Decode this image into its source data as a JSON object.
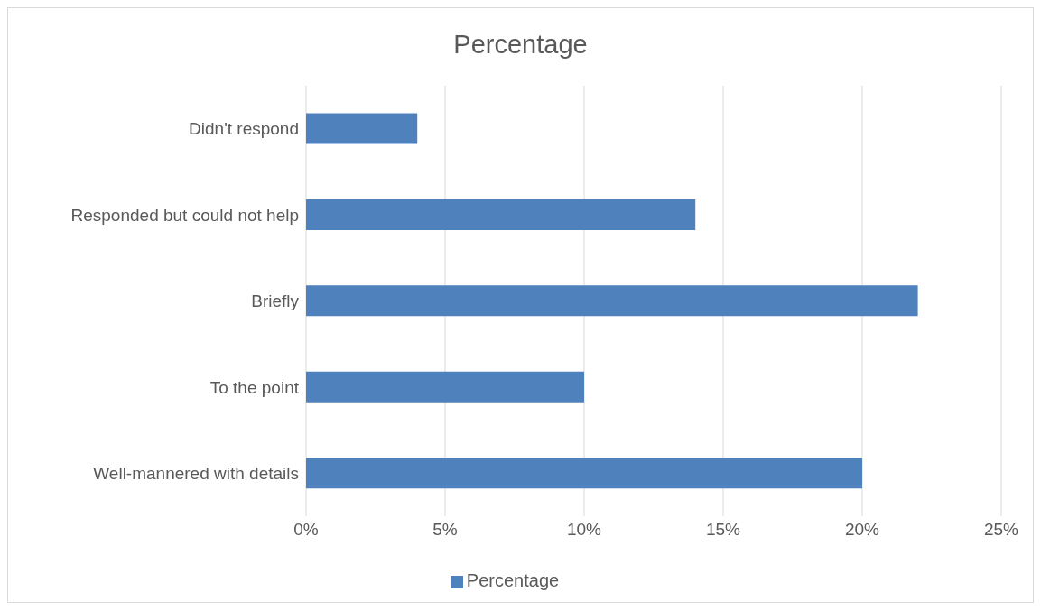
{
  "chart_data": {
    "type": "bar",
    "title": "Percentage",
    "orientation": "horizontal",
    "categories": [
      "Didn't respond",
      "Responded but could not help",
      "Briefly",
      "To the point",
      "Well-mannered with details"
    ],
    "series": [
      {
        "name": "Percentage",
        "color": "#4f81bd",
        "values": [
          4,
          14,
          22,
          10,
          20
        ]
      }
    ],
    "xlim": [
      0,
      25
    ],
    "xticks": [
      {
        "value": 0,
        "label": "0%"
      },
      {
        "value": 5,
        "label": "5%"
      },
      {
        "value": 10,
        "label": "10%"
      },
      {
        "value": 15,
        "label": "15%"
      },
      {
        "value": 20,
        "label": "20%"
      },
      {
        "value": 25,
        "label": "25%"
      }
    ],
    "grid": "x",
    "legend": "bottom"
  }
}
